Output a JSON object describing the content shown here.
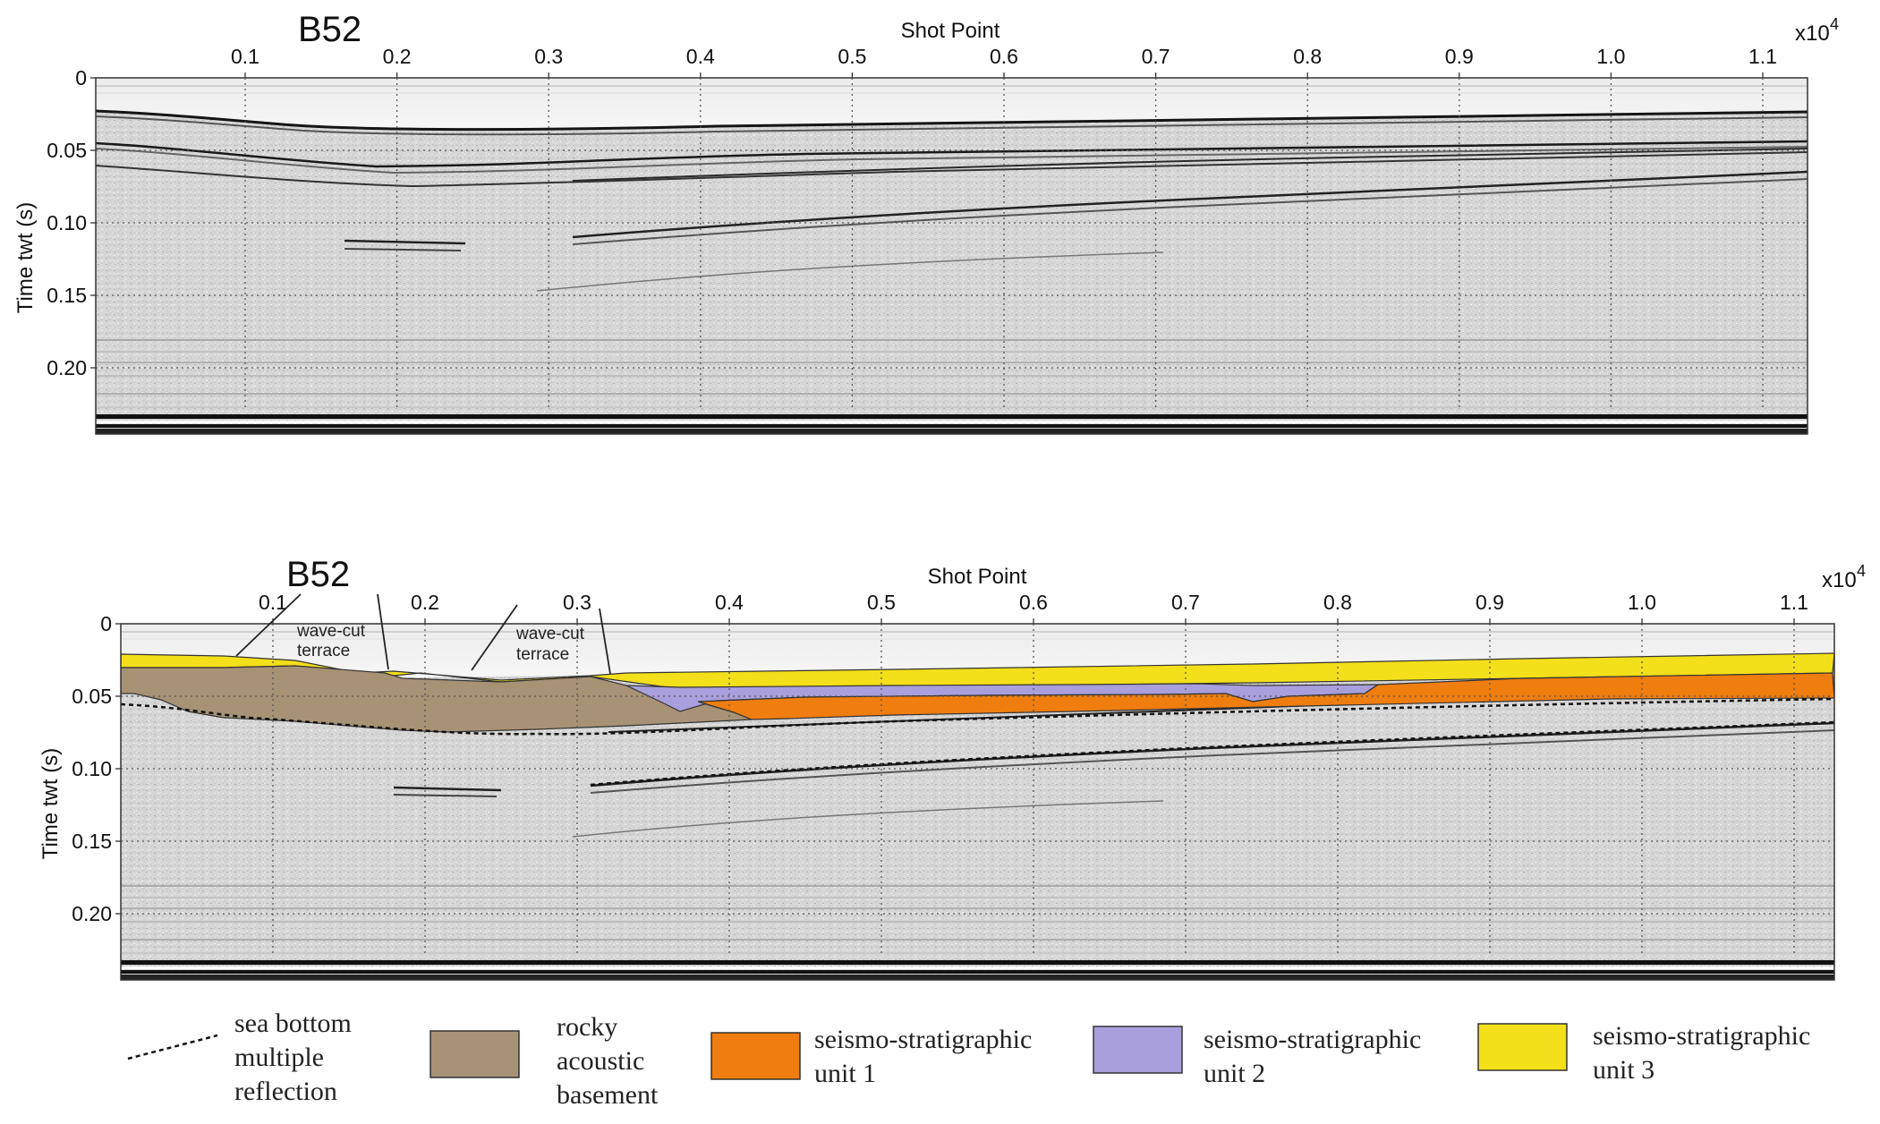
{
  "panels": [
    {
      "id": "top",
      "line_name": "B52",
      "x_axis_title": "Shot Point",
      "x_multiplier": "x10",
      "x_multiplier_exp": "4",
      "x_ticks": [
        "0.1",
        "0.2",
        "0.3",
        "0.4",
        "0.5",
        "0.6",
        "0.7",
        "0.8",
        "0.9",
        "1.0",
        "1.1"
      ],
      "y_axis_title": "Time twt (s)",
      "y_ticks": [
        "0",
        "0.05",
        "0.10",
        "0.15",
        "0.20"
      ],
      "interpreted": false
    },
    {
      "id": "bottom",
      "line_name": "B52",
      "x_axis_title": "Shot Point",
      "x_multiplier": "x10",
      "x_multiplier_exp": "4",
      "x_ticks": [
        "0.1",
        "0.2",
        "0.3",
        "0.4",
        "0.5",
        "0.6",
        "0.7",
        "0.8",
        "0.9",
        "1.0",
        "1.1"
      ],
      "y_axis_title": "Time twt (s)",
      "y_ticks": [
        "0",
        "0.05",
        "0.10",
        "0.15",
        "0.20"
      ],
      "interpreted": true,
      "annotations": [
        {
          "label_line1": "wave-cut",
          "label_line2": "terrace"
        },
        {
          "label_line1": "wave-cut",
          "label_line2": "terrace"
        }
      ]
    }
  ],
  "legend": [
    {
      "key": "multiple",
      "lines": [
        "sea bottom",
        "multiple",
        "reflection"
      ],
      "style": "dashed-line",
      "color": "#111111"
    },
    {
      "key": "basement",
      "lines": [
        "rocky",
        "acoustic",
        "basement"
      ],
      "style": "swatch",
      "color": "#a89276"
    },
    {
      "key": "unit1",
      "lines": [
        "seismo-stratigraphic",
        "unit 1"
      ],
      "style": "swatch",
      "color": "#ef7d10"
    },
    {
      "key": "unit2",
      "lines": [
        "seismo-stratigraphic",
        "unit 2"
      ],
      "style": "swatch",
      "color": "#a99fdc"
    },
    {
      "key": "unit3",
      "lines": [
        "seismo-stratigraphic",
        "unit 3"
      ],
      "style": "swatch",
      "color": "#f3df1a"
    }
  ],
  "colors": {
    "basement": "#a89276",
    "unit1": "#ef7d10",
    "unit2": "#a99fdc",
    "unit3": "#f3df1a",
    "profile_background": "#d4d4d4",
    "grid": "#555555"
  }
}
